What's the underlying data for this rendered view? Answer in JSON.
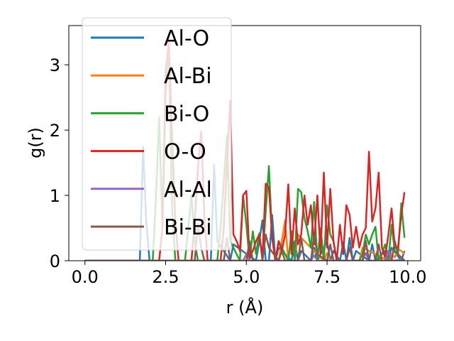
{
  "chart_data": {
    "type": "line",
    "xlabel": "r (Å)",
    "ylabel": "g(r)",
    "xlim": [
      -0.5,
      10.4
    ],
    "ylim": [
      0,
      3.6
    ],
    "xticks": [
      "0.0",
      "2.5",
      "5.0",
      "7.5",
      "10.0"
    ],
    "xtick_values": [
      0,
      2.5,
      5,
      7.5,
      10
    ],
    "yticks": [
      "0",
      "1",
      "2",
      "3"
    ],
    "ytick_values": [
      0,
      1,
      2,
      3
    ],
    "legend_position": "upper-left",
    "grid": false,
    "series": [
      {
        "name": "Al-O",
        "color": "#1f77b4",
        "x": [
          0,
          1.7,
          1.8,
          1.9,
          2.0,
          2.1,
          3.9,
          4.0,
          4.1,
          4.5,
          4.6,
          5.3,
          5.4,
          5.5,
          5.6,
          5.7,
          5.8,
          5.9,
          6.0,
          6.4,
          6.5,
          6.6,
          6.7,
          7.0,
          7.1,
          7.2,
          7.5,
          7.6,
          7.7,
          7.9,
          8.0,
          8.1,
          8.2,
          8.3,
          8.4,
          8.8,
          8.9,
          9.0,
          9.3,
          9.4,
          9.5,
          9.8,
          9.9
        ],
        "y": [
          0,
          0,
          1.75,
          0.6,
          0,
          0,
          0,
          1.47,
          0.3,
          0,
          0.25,
          0,
          0.3,
          0.62,
          0,
          0,
          0.7,
          0,
          0.2,
          0,
          0.3,
          0,
          0.15,
          0,
          0.2,
          0,
          0.3,
          0,
          0.15,
          0,
          0.28,
          0,
          0.35,
          0,
          0.15,
          0,
          0.25,
          0,
          0.15,
          0,
          0.2,
          0,
          0.15
        ]
      },
      {
        "name": "Al-Bi",
        "color": "#ff7f0e",
        "x": [
          0,
          6.0,
          6.1,
          6.2,
          6.3,
          6.5,
          6.6,
          7.4,
          7.5,
          7.6,
          8.5,
          8.6,
          9.4,
          9.5,
          9.6,
          9.7,
          9.8,
          9.9
        ],
        "y": [
          0,
          0,
          0.3,
          0.62,
          0,
          0,
          0.4,
          0,
          0.12,
          0,
          0,
          0.2,
          0,
          0.1,
          0.05,
          0.18,
          0.15,
          0.1
        ]
      },
      {
        "name": "Bi-O",
        "color": "#2ca02c",
        "x": [
          0,
          2.1,
          2.2,
          2.3,
          2.4,
          2.5,
          2.6,
          2.7,
          2.8,
          3.1,
          3.2,
          3.3,
          3.4,
          3.5,
          4.1,
          4.2,
          4.3,
          4.4,
          4.5,
          4.8,
          4.9,
          5.0,
          5.1,
          5.2,
          5.3,
          5.4,
          5.5,
          5.6,
          5.7,
          5.8,
          5.9,
          6.0,
          6.3,
          6.4,
          6.5,
          6.6,
          6.7,
          6.8,
          6.9,
          7.0,
          7.1,
          7.2,
          7.3,
          7.4,
          7.5,
          7.6,
          7.7,
          7.8,
          8.5,
          8.6,
          8.7,
          8.8,
          8.9,
          9.0,
          9.1,
          9.2,
          9.3,
          9.4,
          9.5,
          9.6,
          9.7,
          9.8,
          9.9
        ],
        "y": [
          0,
          0,
          1.0,
          2.2,
          0.5,
          2.6,
          3.1,
          0.8,
          0,
          0,
          0.5,
          1.0,
          0.3,
          0,
          0,
          0.5,
          1.2,
          1.92,
          0.3,
          0,
          1.0,
          0.55,
          0,
          0.45,
          0.1,
          0.42,
          0,
          0.75,
          1.45,
          0.35,
          0,
          0.3,
          0,
          0.45,
          0,
          1.1,
          1.05,
          0.65,
          0.45,
          0.2,
          0.9,
          0,
          0.5,
          0,
          0.85,
          0.4,
          0.3,
          0,
          0,
          0.1,
          0.4,
          0.25,
          0.4,
          0.52,
          0,
          0.1,
          0.25,
          0,
          0.55,
          0.15,
          0.1,
          0.88,
          0.35
        ]
      },
      {
        "name": "O-O",
        "color": "#d62728",
        "x": [
          0,
          2.3,
          2.4,
          2.5,
          2.6,
          2.7,
          2.8,
          2.9,
          3.3,
          3.4,
          3.5,
          3.6,
          3.7,
          3.8,
          4.2,
          4.3,
          4.4,
          4.5,
          4.6,
          4.7,
          4.8,
          4.9,
          5.0,
          5.1,
          5.2,
          5.3,
          5.4,
          5.5,
          5.6,
          5.7,
          5.8,
          5.9,
          6.0,
          6.1,
          6.2,
          6.3,
          6.4,
          6.5,
          6.6,
          6.7,
          6.8,
          6.9,
          7.0,
          7.1,
          7.2,
          7.3,
          7.4,
          7.5,
          7.6,
          7.7,
          7.8,
          7.9,
          8.0,
          8.1,
          8.2,
          8.3,
          8.4,
          8.5,
          8.6,
          8.7,
          8.8,
          8.9,
          9.0,
          9.1,
          9.2,
          9.3,
          9.4,
          9.5,
          9.6,
          9.7,
          9.8,
          9.9
        ],
        "y": [
          0,
          0,
          0.5,
          2.9,
          3.35,
          1.9,
          0.6,
          0,
          0,
          0.6,
          1.4,
          1.98,
          0.7,
          0,
          0,
          0.5,
          1.5,
          2.45,
          0.4,
          0.3,
          0.15,
          1.0,
          1.07,
          0.05,
          0.15,
          0.3,
          0.4,
          0.05,
          1.18,
          1.12,
          0.35,
          0,
          0.3,
          0.15,
          0.4,
          1.17,
          0.1,
          0.8,
          0.25,
          0.4,
          1.0,
          0.55,
          0.85,
          0.25,
          1.0,
          0.1,
          1.35,
          0.2,
          1.1,
          0.3,
          0,
          0.55,
          0.1,
          0.85,
          0.7,
          0.2,
          0.52,
          0.2,
          0.4,
          0.5,
          1.67,
          0.6,
          0.8,
          1.35,
          0.2,
          0.05,
          0.4,
          0.8,
          0.2,
          0.2,
          0.7,
          1.05
        ]
      },
      {
        "name": "Al-Al",
        "color": "#9467bd",
        "x": [
          0,
          4.9,
          5.0,
          5.1,
          7.0,
          7.1,
          7.2,
          8.6,
          8.7,
          8.8,
          9.3,
          9.4,
          9.5,
          9.9
        ],
        "y": [
          0,
          0,
          0.1,
          0,
          0,
          0.08,
          0,
          0,
          0.12,
          0,
          0,
          0.15,
          0,
          0.02
        ]
      },
      {
        "name": "Bi-Bi",
        "color": "#8c564b",
        "x": [
          0,
          3.4,
          3.5,
          3.6,
          3.7,
          4.3,
          4.4,
          4.5,
          5.0,
          5.1,
          5.2,
          5.5,
          5.6,
          5.7,
          6.0,
          6.1,
          6.2,
          6.6,
          6.7,
          6.8,
          7.0,
          7.1,
          7.2,
          7.5,
          7.6,
          7.7,
          8.1,
          8.2,
          8.3,
          8.6,
          8.7,
          8.8,
          9.0,
          9.1,
          9.2,
          9.5,
          9.6,
          9.7,
          9.9
        ],
        "y": [
          0,
          0,
          0.55,
          0.2,
          0,
          0,
          0.35,
          0,
          0,
          0.3,
          0,
          0,
          0.4,
          0.2,
          0,
          0.15,
          0,
          0,
          0.35,
          0,
          0,
          0.4,
          0.1,
          0,
          0.25,
          0,
          0,
          0.2,
          0,
          0,
          0.3,
          0,
          0,
          0.25,
          0,
          0,
          0.3,
          0.1,
          0
        ]
      }
    ]
  }
}
